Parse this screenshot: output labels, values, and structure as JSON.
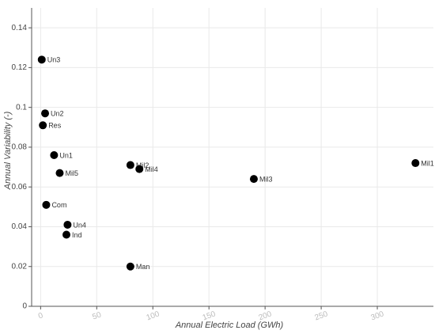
{
  "chart_data": {
    "type": "scatter",
    "xlabel": "Annual Electric Load (GWh)",
    "ylabel": "Annual Variability (-)",
    "xlim": [
      -8,
      350
    ],
    "ylim": [
      0,
      0.15
    ],
    "x_ticks": [
      0,
      50,
      100,
      150,
      200,
      250,
      300
    ],
    "y_ticks": [
      0,
      0.02,
      0.04,
      0.06,
      0.08,
      0.1,
      0.12,
      0.14
    ],
    "y_tick_labels": [
      "0",
      "0.02",
      "0.04",
      "0.06",
      "0.08",
      "0.1",
      "0.12",
      "0.14"
    ],
    "grid": true,
    "point_color": "#000000",
    "points": [
      {
        "label": "Un3",
        "x": 1,
        "y": 0.124
      },
      {
        "label": "Un2",
        "x": 4,
        "y": 0.097
      },
      {
        "label": "Res",
        "x": 2,
        "y": 0.091
      },
      {
        "label": "Un1",
        "x": 12,
        "y": 0.076
      },
      {
        "label": "Mil5",
        "x": 17,
        "y": 0.067
      },
      {
        "label": "Com",
        "x": 5,
        "y": 0.051
      },
      {
        "label": "Un4",
        "x": 24,
        "y": 0.041
      },
      {
        "label": "Ind",
        "x": 23,
        "y": 0.036
      },
      {
        "label": "Mil2",
        "x": 80,
        "y": 0.071
      },
      {
        "label": "Mil4",
        "x": 88,
        "y": 0.069
      },
      {
        "label": "Man",
        "x": 80,
        "y": 0.02
      },
      {
        "label": "Mil3",
        "x": 190,
        "y": 0.064
      },
      {
        "label": "Mil1",
        "x": 334,
        "y": 0.072
      }
    ]
  }
}
